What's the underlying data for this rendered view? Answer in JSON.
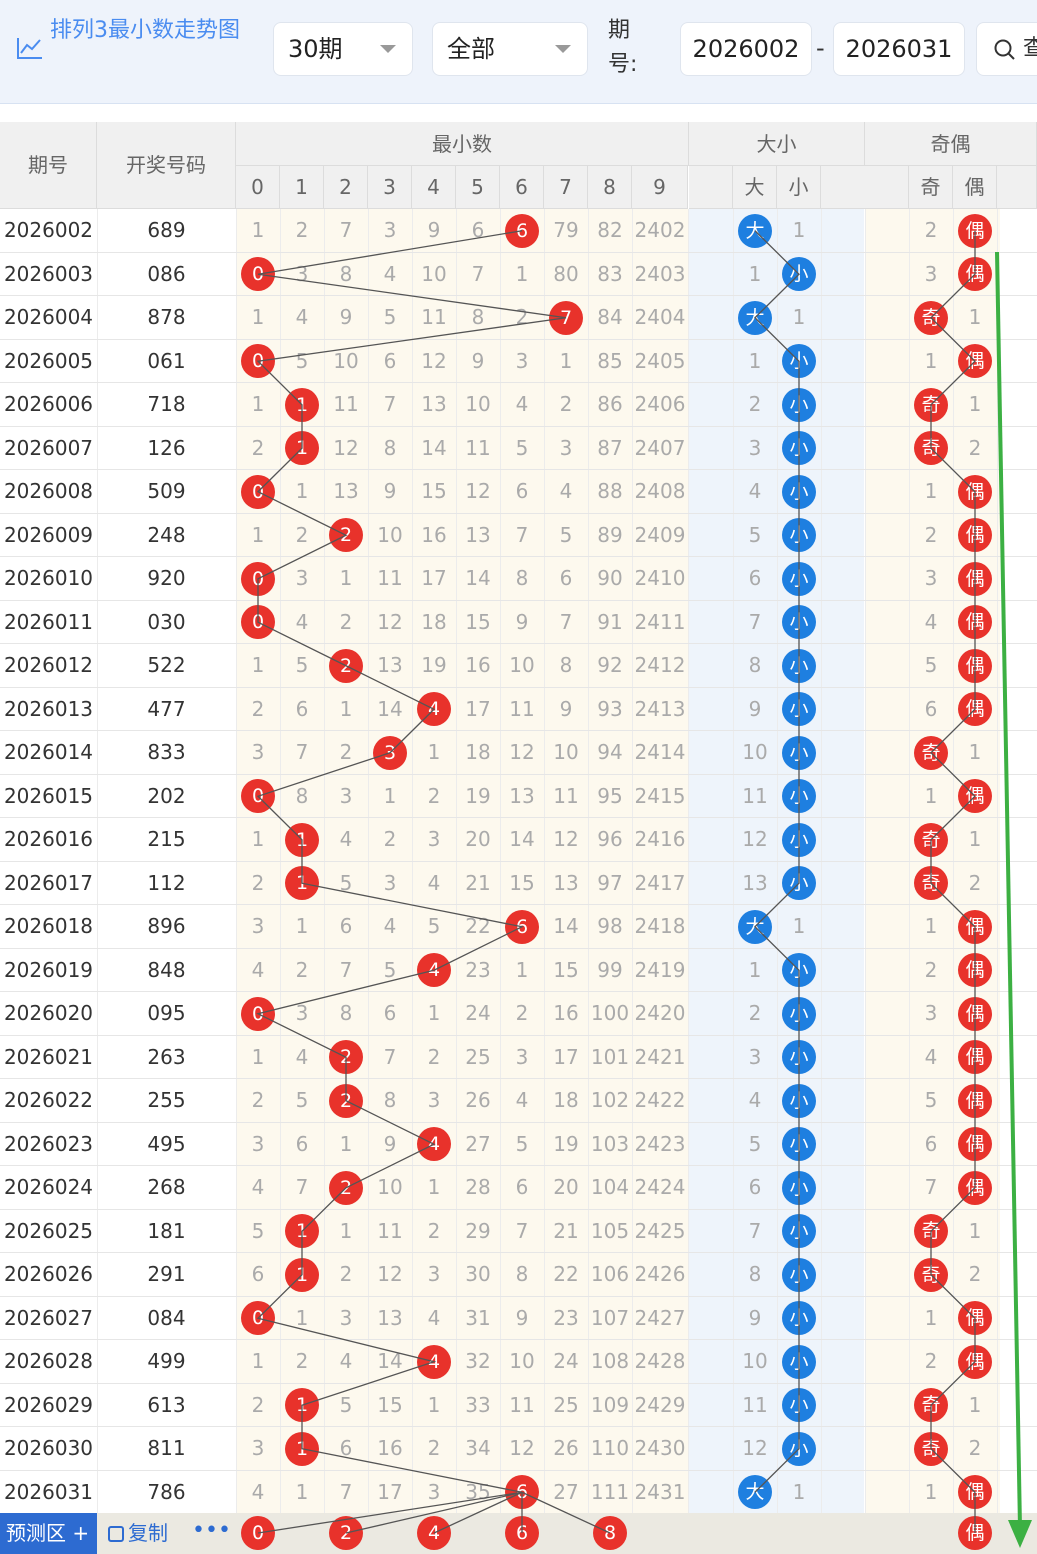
{
  "toolbar": {
    "title": "排列3最小数走势图",
    "period_select": "30期",
    "type_select": "全部",
    "issue_label": "期号:",
    "issue_from": "2026002",
    "issue_to": "2026031",
    "dash": "-",
    "search_label": "查"
  },
  "table": {
    "headers": {
      "issue": "期号",
      "numbers": "开奖号码",
      "min_group": "最小数",
      "size_group": "大小",
      "parity_group": "奇偶",
      "digits": [
        "0",
        "1",
        "2",
        "3",
        "4",
        "5",
        "6",
        "7",
        "8",
        "9"
      ],
      "size_cols": [
        "大",
        "小"
      ],
      "parity_cols": [
        "奇",
        "偶"
      ]
    },
    "rows": [
      {
        "issue": "2026002",
        "num": "689",
        "min": [
          1,
          2,
          7,
          3,
          9,
          6,
          6,
          79,
          82,
          2402
        ],
        "hit": 6,
        "size": [
          "大",
          "1"
        ],
        "sizeHit": 0,
        "parity": [
          "2",
          "偶"
        ],
        "parHit": 1
      },
      {
        "issue": "2026003",
        "num": "086",
        "min": [
          0,
          3,
          8,
          4,
          10,
          7,
          1,
          80,
          83,
          2403
        ],
        "hit": 0,
        "size": [
          "1",
          "小"
        ],
        "sizeHit": 1,
        "parity": [
          "3",
          "偶"
        ],
        "parHit": 1
      },
      {
        "issue": "2026004",
        "num": "878",
        "min": [
          1,
          4,
          9,
          5,
          11,
          8,
          2,
          7,
          84,
          2404
        ],
        "hit": 7,
        "size": [
          "大",
          "1"
        ],
        "sizeHit": 0,
        "parity": [
          "奇",
          "1"
        ],
        "parHit": 0
      },
      {
        "issue": "2026005",
        "num": "061",
        "min": [
          0,
          5,
          10,
          6,
          12,
          9,
          3,
          1,
          85,
          2405
        ],
        "hit": 0,
        "size": [
          "1",
          "小"
        ],
        "sizeHit": 1,
        "parity": [
          "1",
          "偶"
        ],
        "parHit": 1
      },
      {
        "issue": "2026006",
        "num": "718",
        "min": [
          1,
          1,
          11,
          7,
          13,
          10,
          4,
          2,
          86,
          2406
        ],
        "hit": 1,
        "size": [
          "2",
          "小"
        ],
        "sizeHit": 1,
        "parity": [
          "奇",
          "1"
        ],
        "parHit": 0
      },
      {
        "issue": "2026007",
        "num": "126",
        "min": [
          2,
          1,
          12,
          8,
          14,
          11,
          5,
          3,
          87,
          2407
        ],
        "hit": 1,
        "size": [
          "3",
          "小"
        ],
        "sizeHit": 1,
        "parity": [
          "奇",
          "2"
        ],
        "parHit": 0
      },
      {
        "issue": "2026008",
        "num": "509",
        "min": [
          0,
          1,
          13,
          9,
          15,
          12,
          6,
          4,
          88,
          2408
        ],
        "hit": 0,
        "size": [
          "4",
          "小"
        ],
        "sizeHit": 1,
        "parity": [
          "1",
          "偶"
        ],
        "parHit": 1
      },
      {
        "issue": "2026009",
        "num": "248",
        "min": [
          1,
          2,
          2,
          10,
          16,
          13,
          7,
          5,
          89,
          2409
        ],
        "hit": 2,
        "size": [
          "5",
          "小"
        ],
        "sizeHit": 1,
        "parity": [
          "2",
          "偶"
        ],
        "parHit": 1
      },
      {
        "issue": "2026010",
        "num": "920",
        "min": [
          0,
          3,
          1,
          11,
          17,
          14,
          8,
          6,
          90,
          2410
        ],
        "hit": 0,
        "size": [
          "6",
          "小"
        ],
        "sizeHit": 1,
        "parity": [
          "3",
          "偶"
        ],
        "parHit": 1
      },
      {
        "issue": "2026011",
        "num": "030",
        "min": [
          0,
          4,
          2,
          12,
          18,
          15,
          9,
          7,
          91,
          2411
        ],
        "hit": 0,
        "size": [
          "7",
          "小"
        ],
        "sizeHit": 1,
        "parity": [
          "4",
          "偶"
        ],
        "parHit": 1
      },
      {
        "issue": "2026012",
        "num": "522",
        "min": [
          1,
          5,
          2,
          13,
          19,
          16,
          10,
          8,
          92,
          2412
        ],
        "hit": 2,
        "size": [
          "8",
          "小"
        ],
        "sizeHit": 1,
        "parity": [
          "5",
          "偶"
        ],
        "parHit": 1
      },
      {
        "issue": "2026013",
        "num": "477",
        "min": [
          2,
          6,
          1,
          14,
          4,
          17,
          11,
          9,
          93,
          2413
        ],
        "hit": 4,
        "size": [
          "9",
          "小"
        ],
        "sizeHit": 1,
        "parity": [
          "6",
          "偶"
        ],
        "parHit": 1
      },
      {
        "issue": "2026014",
        "num": "833",
        "min": [
          3,
          7,
          2,
          3,
          1,
          18,
          12,
          10,
          94,
          2414
        ],
        "hit": 3,
        "size": [
          "10",
          "小"
        ],
        "sizeHit": 1,
        "parity": [
          "奇",
          "1"
        ],
        "parHit": 0
      },
      {
        "issue": "2026015",
        "num": "202",
        "min": [
          0,
          8,
          3,
          1,
          2,
          19,
          13,
          11,
          95,
          2415
        ],
        "hit": 0,
        "size": [
          "11",
          "小"
        ],
        "sizeHit": 1,
        "parity": [
          "1",
          "偶"
        ],
        "parHit": 1
      },
      {
        "issue": "2026016",
        "num": "215",
        "min": [
          1,
          1,
          4,
          2,
          3,
          20,
          14,
          12,
          96,
          2416
        ],
        "hit": 1,
        "size": [
          "12",
          "小"
        ],
        "sizeHit": 1,
        "parity": [
          "奇",
          "1"
        ],
        "parHit": 0
      },
      {
        "issue": "2026017",
        "num": "112",
        "min": [
          2,
          1,
          5,
          3,
          4,
          21,
          15,
          13,
          97,
          2417
        ],
        "hit": 1,
        "size": [
          "13",
          "小"
        ],
        "sizeHit": 1,
        "parity": [
          "奇",
          "2"
        ],
        "parHit": 0
      },
      {
        "issue": "2026018",
        "num": "896",
        "min": [
          3,
          1,
          6,
          4,
          5,
          22,
          6,
          14,
          98,
          2418
        ],
        "hit": 6,
        "size": [
          "大",
          "1"
        ],
        "sizeHit": 0,
        "parity": [
          "1",
          "偶"
        ],
        "parHit": 1
      },
      {
        "issue": "2026019",
        "num": "848",
        "min": [
          4,
          2,
          7,
          5,
          4,
          23,
          1,
          15,
          99,
          2419
        ],
        "hit": 4,
        "size": [
          "1",
          "小"
        ],
        "sizeHit": 1,
        "parity": [
          "2",
          "偶"
        ],
        "parHit": 1
      },
      {
        "issue": "2026020",
        "num": "095",
        "min": [
          0,
          3,
          8,
          6,
          1,
          24,
          2,
          16,
          100,
          2420
        ],
        "hit": 0,
        "size": [
          "2",
          "小"
        ],
        "sizeHit": 1,
        "parity": [
          "3",
          "偶"
        ],
        "parHit": 1
      },
      {
        "issue": "2026021",
        "num": "263",
        "min": [
          1,
          4,
          2,
          7,
          2,
          25,
          3,
          17,
          101,
          2421
        ],
        "hit": 2,
        "size": [
          "3",
          "小"
        ],
        "sizeHit": 1,
        "parity": [
          "4",
          "偶"
        ],
        "parHit": 1
      },
      {
        "issue": "2026022",
        "num": "255",
        "min": [
          2,
          5,
          2,
          8,
          3,
          26,
          4,
          18,
          102,
          2422
        ],
        "hit": 2,
        "size": [
          "4",
          "小"
        ],
        "sizeHit": 1,
        "parity": [
          "5",
          "偶"
        ],
        "parHit": 1
      },
      {
        "issue": "2026023",
        "num": "495",
        "min": [
          3,
          6,
          1,
          9,
          4,
          27,
          5,
          19,
          103,
          2423
        ],
        "hit": 4,
        "size": [
          "5",
          "小"
        ],
        "sizeHit": 1,
        "parity": [
          "6",
          "偶"
        ],
        "parHit": 1
      },
      {
        "issue": "2026024",
        "num": "268",
        "min": [
          4,
          7,
          2,
          10,
          1,
          28,
          6,
          20,
          104,
          2424
        ],
        "hit": 2,
        "size": [
          "6",
          "小"
        ],
        "sizeHit": 1,
        "parity": [
          "7",
          "偶"
        ],
        "parHit": 1
      },
      {
        "issue": "2026025",
        "num": "181",
        "min": [
          5,
          1,
          1,
          11,
          2,
          29,
          7,
          21,
          105,
          2425
        ],
        "hit": 1,
        "size": [
          "7",
          "小"
        ],
        "sizeHit": 1,
        "parity": [
          "奇",
          "1"
        ],
        "parHit": 0
      },
      {
        "issue": "2026026",
        "num": "291",
        "min": [
          6,
          1,
          2,
          12,
          3,
          30,
          8,
          22,
          106,
          2426
        ],
        "hit": 1,
        "size": [
          "8",
          "小"
        ],
        "sizeHit": 1,
        "parity": [
          "奇",
          "2"
        ],
        "parHit": 0
      },
      {
        "issue": "2026027",
        "num": "084",
        "min": [
          0,
          1,
          3,
          13,
          4,
          31,
          9,
          23,
          107,
          2427
        ],
        "hit": 0,
        "size": [
          "9",
          "小"
        ],
        "sizeHit": 1,
        "parity": [
          "1",
          "偶"
        ],
        "parHit": 1
      },
      {
        "issue": "2026028",
        "num": "499",
        "min": [
          1,
          2,
          4,
          14,
          4,
          32,
          10,
          24,
          108,
          2428
        ],
        "hit": 4,
        "size": [
          "10",
          "小"
        ],
        "sizeHit": 1,
        "parity": [
          "2",
          "偶"
        ],
        "parHit": 1
      },
      {
        "issue": "2026029",
        "num": "613",
        "min": [
          2,
          1,
          5,
          15,
          1,
          33,
          11,
          25,
          109,
          2429
        ],
        "hit": 1,
        "size": [
          "11",
          "小"
        ],
        "sizeHit": 1,
        "parity": [
          "奇",
          "1"
        ],
        "parHit": 0
      },
      {
        "issue": "2026030",
        "num": "811",
        "min": [
          3,
          1,
          6,
          16,
          2,
          34,
          12,
          26,
          110,
          2430
        ],
        "hit": 1,
        "size": [
          "12",
          "小"
        ],
        "sizeHit": 1,
        "parity": [
          "奇",
          "2"
        ],
        "parHit": 0
      },
      {
        "issue": "2026031",
        "num": "786",
        "min": [
          4,
          1,
          7,
          17,
          3,
          35,
          6,
          27,
          111,
          2431
        ],
        "hit": 6,
        "size": [
          "大",
          "1"
        ],
        "sizeHit": 0,
        "parity": [
          "1",
          "偶"
        ],
        "parHit": 1
      }
    ],
    "prediction": {
      "label": "预测区 +",
      "copy": "复制",
      "more": "•••",
      "balls": [
        "0",
        "2",
        "4",
        "6",
        "8"
      ],
      "parity": "偶"
    }
  },
  "colors": {
    "red": "#e8322b",
    "blue": "#1e7fe0",
    "accent": "#2d6bd1",
    "trend": "#3cb043"
  }
}
